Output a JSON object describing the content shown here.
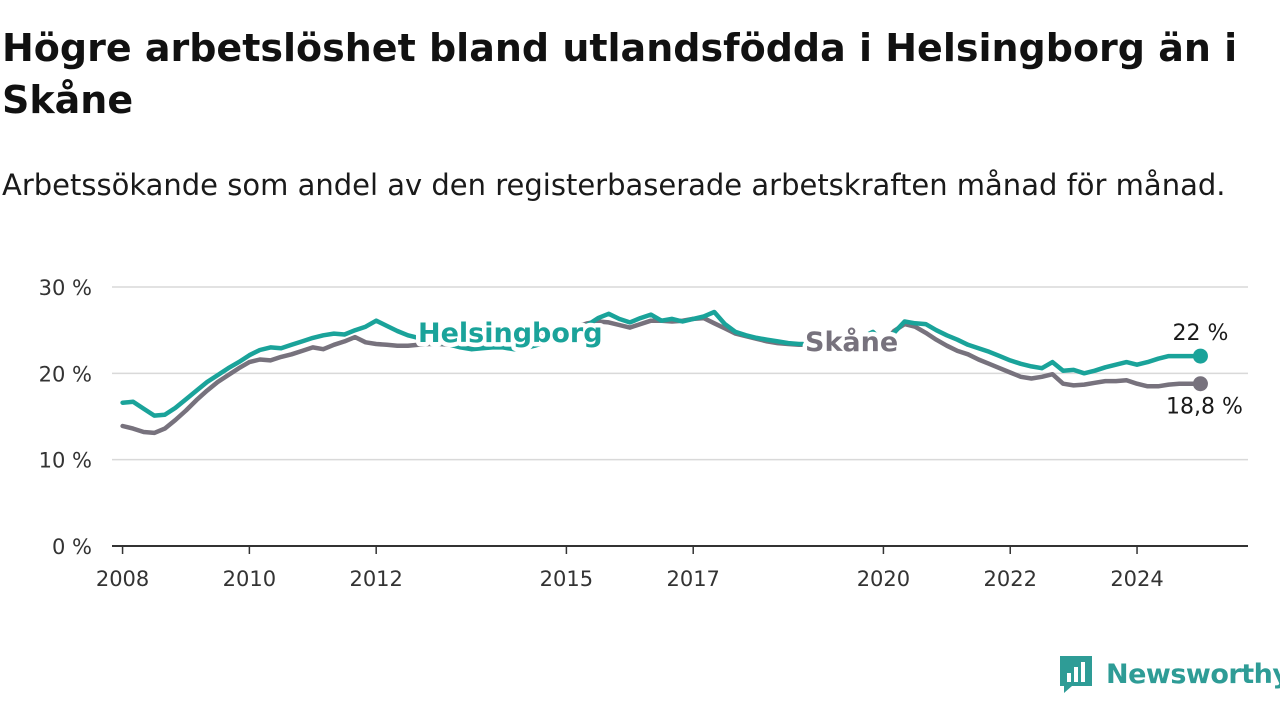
{
  "title": "Högre arbetslöshet bland utlandsfödda i Helsingborg än i Skåne",
  "subtitle": "Arbetssökande som andel av den registerbaserade arbetskraften månad för månad.",
  "brand": {
    "name": "Newsworthy",
    "color": "#2e9c96"
  },
  "chart_data": {
    "type": "line",
    "x_axis": {
      "type": "time",
      "range": [
        "2007-11",
        "2025-10"
      ],
      "ticks": [
        "2008",
        "2010",
        "2012",
        "2015",
        "2017",
        "2020",
        "2022",
        "2024"
      ]
    },
    "y_axis": {
      "range": [
        0,
        30
      ],
      "ticks": [
        0,
        10,
        20,
        30
      ],
      "tick_labels": [
        "0 %",
        "10 %",
        "20 %",
        "30 %"
      ],
      "grid": true
    },
    "legend": "inline labels on the lines",
    "series": [
      {
        "name": "Helsingborg",
        "color": "#1aa39a",
        "end_label": "22 %",
        "x": [
          "2008-01",
          "2008-03",
          "2008-05",
          "2008-07",
          "2008-09",
          "2008-11",
          "2009-01",
          "2009-03",
          "2009-05",
          "2009-07",
          "2009-09",
          "2009-11",
          "2010-01",
          "2010-03",
          "2010-05",
          "2010-07",
          "2010-09",
          "2010-11",
          "2011-01",
          "2011-03",
          "2011-05",
          "2011-07",
          "2011-09",
          "2011-11",
          "2012-01",
          "2012-03",
          "2012-05",
          "2012-07",
          "2012-09",
          "2012-11",
          "2013-01",
          "2013-03",
          "2013-05",
          "2013-07",
          "2013-09",
          "2013-11",
          "2014-01",
          "2014-03",
          "2014-05",
          "2014-07",
          "2014-09",
          "2014-11",
          "2015-01",
          "2015-03",
          "2015-05",
          "2015-07",
          "2015-09",
          "2015-11",
          "2016-01",
          "2016-03",
          "2016-05",
          "2016-07",
          "2016-09",
          "2016-11",
          "2017-01",
          "2017-03",
          "2017-05",
          "2017-07",
          "2017-09",
          "2017-11",
          "2018-01",
          "2018-03",
          "2018-05",
          "2018-07",
          "2018-09",
          "2018-11",
          "2019-01",
          "2019-03",
          "2019-05",
          "2019-07",
          "2019-09",
          "2019-11",
          "2020-01",
          "2020-03",
          "2020-05",
          "2020-07",
          "2020-09",
          "2020-11",
          "2021-01",
          "2021-03",
          "2021-05",
          "2021-07",
          "2021-09",
          "2021-11",
          "2022-01",
          "2022-03",
          "2022-05",
          "2022-07",
          "2022-09",
          "2022-11",
          "2023-01",
          "2023-03",
          "2023-05",
          "2023-07",
          "2023-09",
          "2023-11",
          "2024-01",
          "2024-03",
          "2024-05",
          "2024-07",
          "2024-09",
          "2024-11",
          "2025-01"
        ],
        "values": [
          16.6,
          16.7,
          15.9,
          15.1,
          15.2,
          16.0,
          17.0,
          18.0,
          19.0,
          19.8,
          20.6,
          21.3,
          22.1,
          22.7,
          23.0,
          22.9,
          23.3,
          23.7,
          24.1,
          24.4,
          24.6,
          24.5,
          25.0,
          25.4,
          26.1,
          25.5,
          24.9,
          24.4,
          24.1,
          23.8,
          23.6,
          23.3,
          23.0,
          22.8,
          22.9,
          23.0,
          23.0,
          22.8,
          22.9,
          23.2,
          23.6,
          24.2,
          24.8,
          25.0,
          25.6,
          26.4,
          26.9,
          26.3,
          25.9,
          26.4,
          26.8,
          26.1,
          26.3,
          26.0,
          26.3,
          26.6,
          27.1,
          25.7,
          24.8,
          24.4,
          24.1,
          23.9,
          23.7,
          23.5,
          23.4,
          23.4,
          23.5,
          23.6,
          23.7,
          23.8,
          24.2,
          24.8,
          23.6,
          24.7,
          26.0,
          25.8,
          25.7,
          25.0,
          24.4,
          23.9,
          23.3,
          22.9,
          22.5,
          22.0,
          21.5,
          21.1,
          20.8,
          20.6,
          21.3,
          20.3,
          20.4,
          20.0,
          20.3,
          20.7,
          21.0,
          21.3,
          21.0,
          21.3,
          21.7,
          22.0,
          22.0,
          22.0,
          22.0
        ]
      },
      {
        "name": "Skåne",
        "color": "#77727d",
        "end_label": "18,8 %",
        "x": [
          "2008-01",
          "2008-03",
          "2008-05",
          "2008-07",
          "2008-09",
          "2008-11",
          "2009-01",
          "2009-03",
          "2009-05",
          "2009-07",
          "2009-09",
          "2009-11",
          "2010-01",
          "2010-03",
          "2010-05",
          "2010-07",
          "2010-09",
          "2010-11",
          "2011-01",
          "2011-03",
          "2011-05",
          "2011-07",
          "2011-09",
          "2011-11",
          "2012-01",
          "2012-03",
          "2012-05",
          "2012-07",
          "2012-09",
          "2012-11",
          "2013-01",
          "2013-03",
          "2013-05",
          "2013-07",
          "2013-09",
          "2013-11",
          "2014-01",
          "2014-03",
          "2014-05",
          "2014-07",
          "2014-09",
          "2014-11",
          "2015-01",
          "2015-03",
          "2015-05",
          "2015-07",
          "2015-09",
          "2015-11",
          "2016-01",
          "2016-03",
          "2016-05",
          "2016-07",
          "2016-09",
          "2016-11",
          "2017-01",
          "2017-03",
          "2017-05",
          "2017-07",
          "2017-09",
          "2017-11",
          "2018-01",
          "2018-03",
          "2018-05",
          "2018-07",
          "2018-09",
          "2018-11",
          "2019-01",
          "2019-03",
          "2019-05",
          "2019-07",
          "2019-09",
          "2019-11",
          "2020-01",
          "2020-03",
          "2020-05",
          "2020-07",
          "2020-09",
          "2020-11",
          "2021-01",
          "2021-03",
          "2021-05",
          "2021-07",
          "2021-09",
          "2021-11",
          "2022-01",
          "2022-03",
          "2022-05",
          "2022-07",
          "2022-09",
          "2022-11",
          "2023-01",
          "2023-03",
          "2023-05",
          "2023-07",
          "2023-09",
          "2023-11",
          "2024-01",
          "2024-03",
          "2024-05",
          "2024-07",
          "2024-09",
          "2024-11",
          "2025-01"
        ],
        "values": [
          13.9,
          13.6,
          13.2,
          13.1,
          13.6,
          14.6,
          15.7,
          16.9,
          18.0,
          19.0,
          19.8,
          20.6,
          21.3,
          21.6,
          21.5,
          21.9,
          22.2,
          22.6,
          23.0,
          22.8,
          23.3,
          23.7,
          24.2,
          23.6,
          23.4,
          23.3,
          23.2,
          23.2,
          23.3,
          23.4,
          23.4,
          23.3,
          23.2,
          23.2,
          23.3,
          23.4,
          23.6,
          23.7,
          23.9,
          24.1,
          24.6,
          24.9,
          25.2,
          25.4,
          25.8,
          26.0,
          25.9,
          25.6,
          25.3,
          25.7,
          26.1,
          26.1,
          26.0,
          26.1,
          26.3,
          26.4,
          25.8,
          25.2,
          24.6,
          24.3,
          24.0,
          23.7,
          23.5,
          23.4,
          23.3,
          23.3,
          23.3,
          23.3,
          23.3,
          23.4,
          23.6,
          23.3,
          23.4,
          24.9,
          25.7,
          25.4,
          24.7,
          23.9,
          23.2,
          22.6,
          22.2,
          21.6,
          21.1,
          20.6,
          20.1,
          19.6,
          19.4,
          19.6,
          19.9,
          18.8,
          18.6,
          18.7,
          18.9,
          19.1,
          19.1,
          19.2,
          18.8,
          18.5,
          18.5,
          18.7,
          18.8,
          18.8,
          18.8
        ]
      }
    ]
  }
}
